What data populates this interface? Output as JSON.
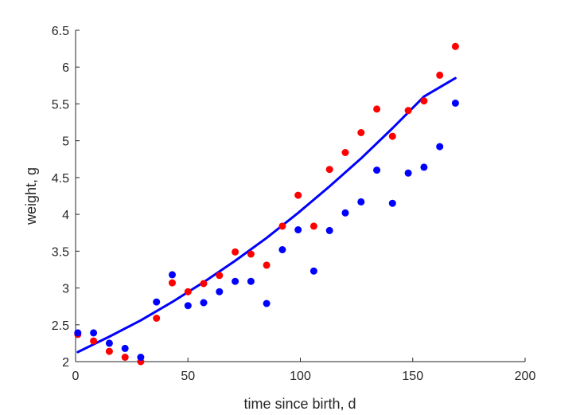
{
  "chart_data": {
    "type": "scatter",
    "title": "",
    "xlabel": "time since birth, d",
    "ylabel": "weight, g",
    "xlim": [
      0,
      200
    ],
    "ylim": [
      2,
      6.5
    ],
    "xticks": [
      0,
      50,
      100,
      150,
      200
    ],
    "yticks": [
      2,
      2.5,
      3,
      3.5,
      4,
      4.5,
      5,
      5.5,
      6,
      6.5
    ],
    "grid": false,
    "legend": "none",
    "series": [
      {
        "type": "scatter",
        "color": "#ff0000",
        "points": [
          [
            1,
            2.37
          ],
          [
            8,
            2.28
          ],
          [
            15,
            2.14
          ],
          [
            22,
            2.06
          ],
          [
            29,
            2.0
          ],
          [
            36,
            2.59
          ],
          [
            43,
            3.07
          ],
          [
            50,
            2.95
          ],
          [
            57,
            3.06
          ],
          [
            64,
            3.17
          ],
          [
            71,
            3.49
          ],
          [
            78,
            3.46
          ],
          [
            85,
            3.31
          ],
          [
            92,
            3.84
          ],
          [
            99,
            4.26
          ],
          [
            106,
            3.84
          ],
          [
            113,
            4.61
          ],
          [
            120,
            4.84
          ],
          [
            127,
            5.11
          ],
          [
            134,
            5.43
          ],
          [
            141,
            5.06
          ],
          [
            148,
            5.41
          ],
          [
            155,
            5.54
          ],
          [
            162,
            5.89
          ],
          [
            169,
            6.28
          ]
        ]
      },
      {
        "type": "scatter",
        "color": "#0000ff",
        "points": [
          [
            1,
            2.39
          ],
          [
            8,
            2.39
          ],
          [
            15,
            2.25
          ],
          [
            22,
            2.18
          ],
          [
            29,
            2.06
          ],
          [
            36,
            2.81
          ],
          [
            43,
            3.18
          ],
          [
            50,
            2.76
          ],
          [
            57,
            2.8
          ],
          [
            64,
            2.95
          ],
          [
            71,
            3.09
          ],
          [
            78,
            3.09
          ],
          [
            85,
            2.79
          ],
          [
            92,
            3.52
          ],
          [
            99,
            3.79
          ],
          [
            106,
            3.23
          ],
          [
            113,
            3.78
          ],
          [
            120,
            4.02
          ],
          [
            127,
            4.17
          ],
          [
            134,
            4.6
          ],
          [
            141,
            4.15
          ],
          [
            148,
            4.56
          ],
          [
            155,
            4.64
          ],
          [
            162,
            4.92
          ],
          [
            169,
            5.51
          ]
        ]
      },
      {
        "type": "line",
        "color": "#0000ff",
        "points": [
          [
            1,
            2.13
          ],
          [
            15,
            2.34
          ],
          [
            29,
            2.56
          ],
          [
            43,
            2.81
          ],
          [
            57,
            3.08
          ],
          [
            71,
            3.37
          ],
          [
            85,
            3.68
          ],
          [
            99,
            4.02
          ],
          [
            113,
            4.38
          ],
          [
            127,
            4.76
          ],
          [
            141,
            5.17
          ],
          [
            155,
            5.6
          ],
          [
            169,
            5.85
          ]
        ]
      }
    ]
  }
}
